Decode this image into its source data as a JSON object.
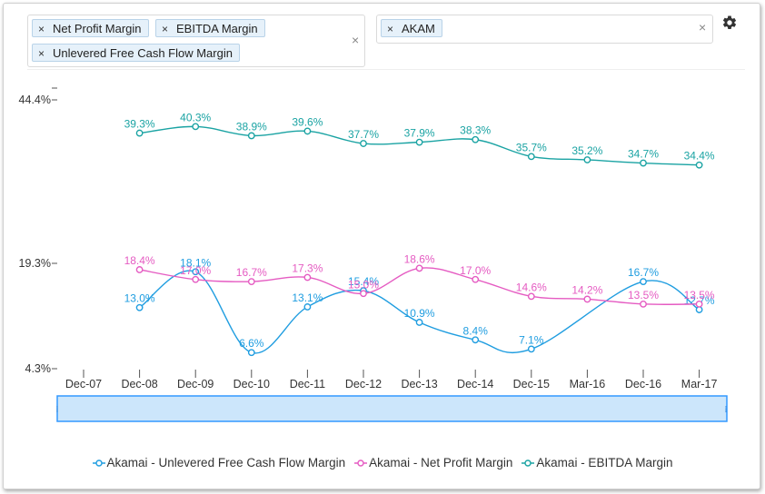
{
  "metric_selector": {
    "chips": [
      {
        "label": "Net Profit Margin"
      },
      {
        "label": "EBITDA Margin"
      },
      {
        "label": "Unlevered Free Cash Flow Margin"
      }
    ],
    "remove_glyph": "×",
    "clear_glyph": "×"
  },
  "company_selector": {
    "chips": [
      {
        "label": "AKAM"
      }
    ],
    "remove_glyph": "×",
    "clear_glyph": "×"
  },
  "settings": {
    "icon": "gear-icon"
  },
  "chart_data": {
    "type": "line",
    "categories": [
      "Dec-07",
      "Dec-08",
      "Dec-09",
      "Dec-10",
      "Dec-11",
      "Dec-12",
      "Dec-13",
      "Dec-14",
      "Dec-15",
      "Mar-16",
      "Dec-16",
      "Mar-17"
    ],
    "y_ticks": [
      {
        "value": 4.3,
        "label": "4.3%"
      },
      {
        "value": 19.3,
        "label": "19.3%"
      },
      {
        "value": 44.4,
        "label": "44.4%"
      }
    ],
    "y_break": {
      "from": 19.3,
      "to": 44.4
    },
    "series": [
      {
        "name": "Akamai - Unlevered Free Cash Flow Margin",
        "color": "#1f9de0",
        "values": [
          null,
          13.0,
          18.1,
          6.6,
          13.1,
          15.4,
          10.9,
          8.4,
          7.1,
          null,
          16.7,
          12.7
        ],
        "labels": [
          "",
          "13.0%",
          "18.1%",
          "6.6%",
          "13.1%",
          "15.4%",
          "10.9%",
          "8.4%",
          "7.1%",
          "",
          "16.7%",
          "12.7%"
        ]
      },
      {
        "name": "Akamai - Net Profit Margin",
        "color": "#e55bc2",
        "values": [
          null,
          18.4,
          17.0,
          16.7,
          17.3,
          15.0,
          18.6,
          17.0,
          14.6,
          14.2,
          13.5,
          13.5
        ],
        "labels": [
          "",
          "18.4%",
          "17.0%",
          "16.7%",
          "17.3%",
          "15.0%",
          "18.6%",
          "17.0%",
          "14.6%",
          "14.2%",
          "13.5%",
          "13.5%"
        ]
      },
      {
        "name": "Akamai - EBITDA Margin",
        "color": "#1aa3a3",
        "values": [
          null,
          39.3,
          40.3,
          38.9,
          39.6,
          37.7,
          37.9,
          38.3,
          35.7,
          35.2,
          34.7,
          34.4
        ],
        "labels": [
          "",
          "39.3%",
          "40.3%",
          "38.9%",
          "39.6%",
          "37.7%",
          "37.9%",
          "38.3%",
          "35.7%",
          "35.2%",
          "34.7%",
          "34.4%"
        ]
      }
    ],
    "legend_position": "bottom",
    "grid": false,
    "navigator": {
      "handle_glyph": "⁞"
    }
  }
}
